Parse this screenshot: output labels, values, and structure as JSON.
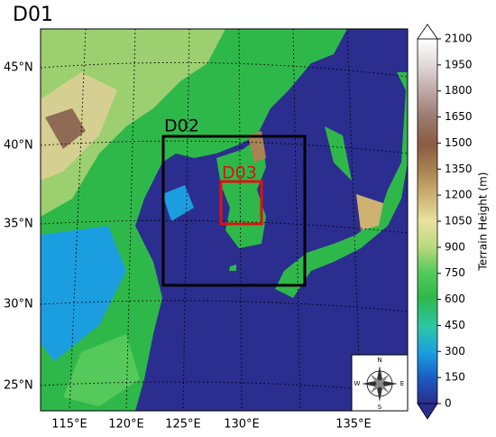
{
  "title": "D01",
  "domains": [
    {
      "label": "D02"
    },
    {
      "label": "D03"
    }
  ],
  "latitude_labels": [
    "45°N",
    "40°N",
    "35°N",
    "30°N",
    "25°N"
  ],
  "longitude_labels": [
    "115°E",
    "120°E",
    "125°E",
    "130°E",
    "135°E"
  ],
  "colorbar": {
    "label": "Terrain Height (m)",
    "ticks": [
      0,
      150,
      300,
      450,
      600,
      750,
      900,
      1050,
      1200,
      1350,
      1500,
      1650,
      1800,
      1950,
      2100
    ]
  },
  "compass": [
    "N",
    "E",
    "S",
    "W"
  ]
}
